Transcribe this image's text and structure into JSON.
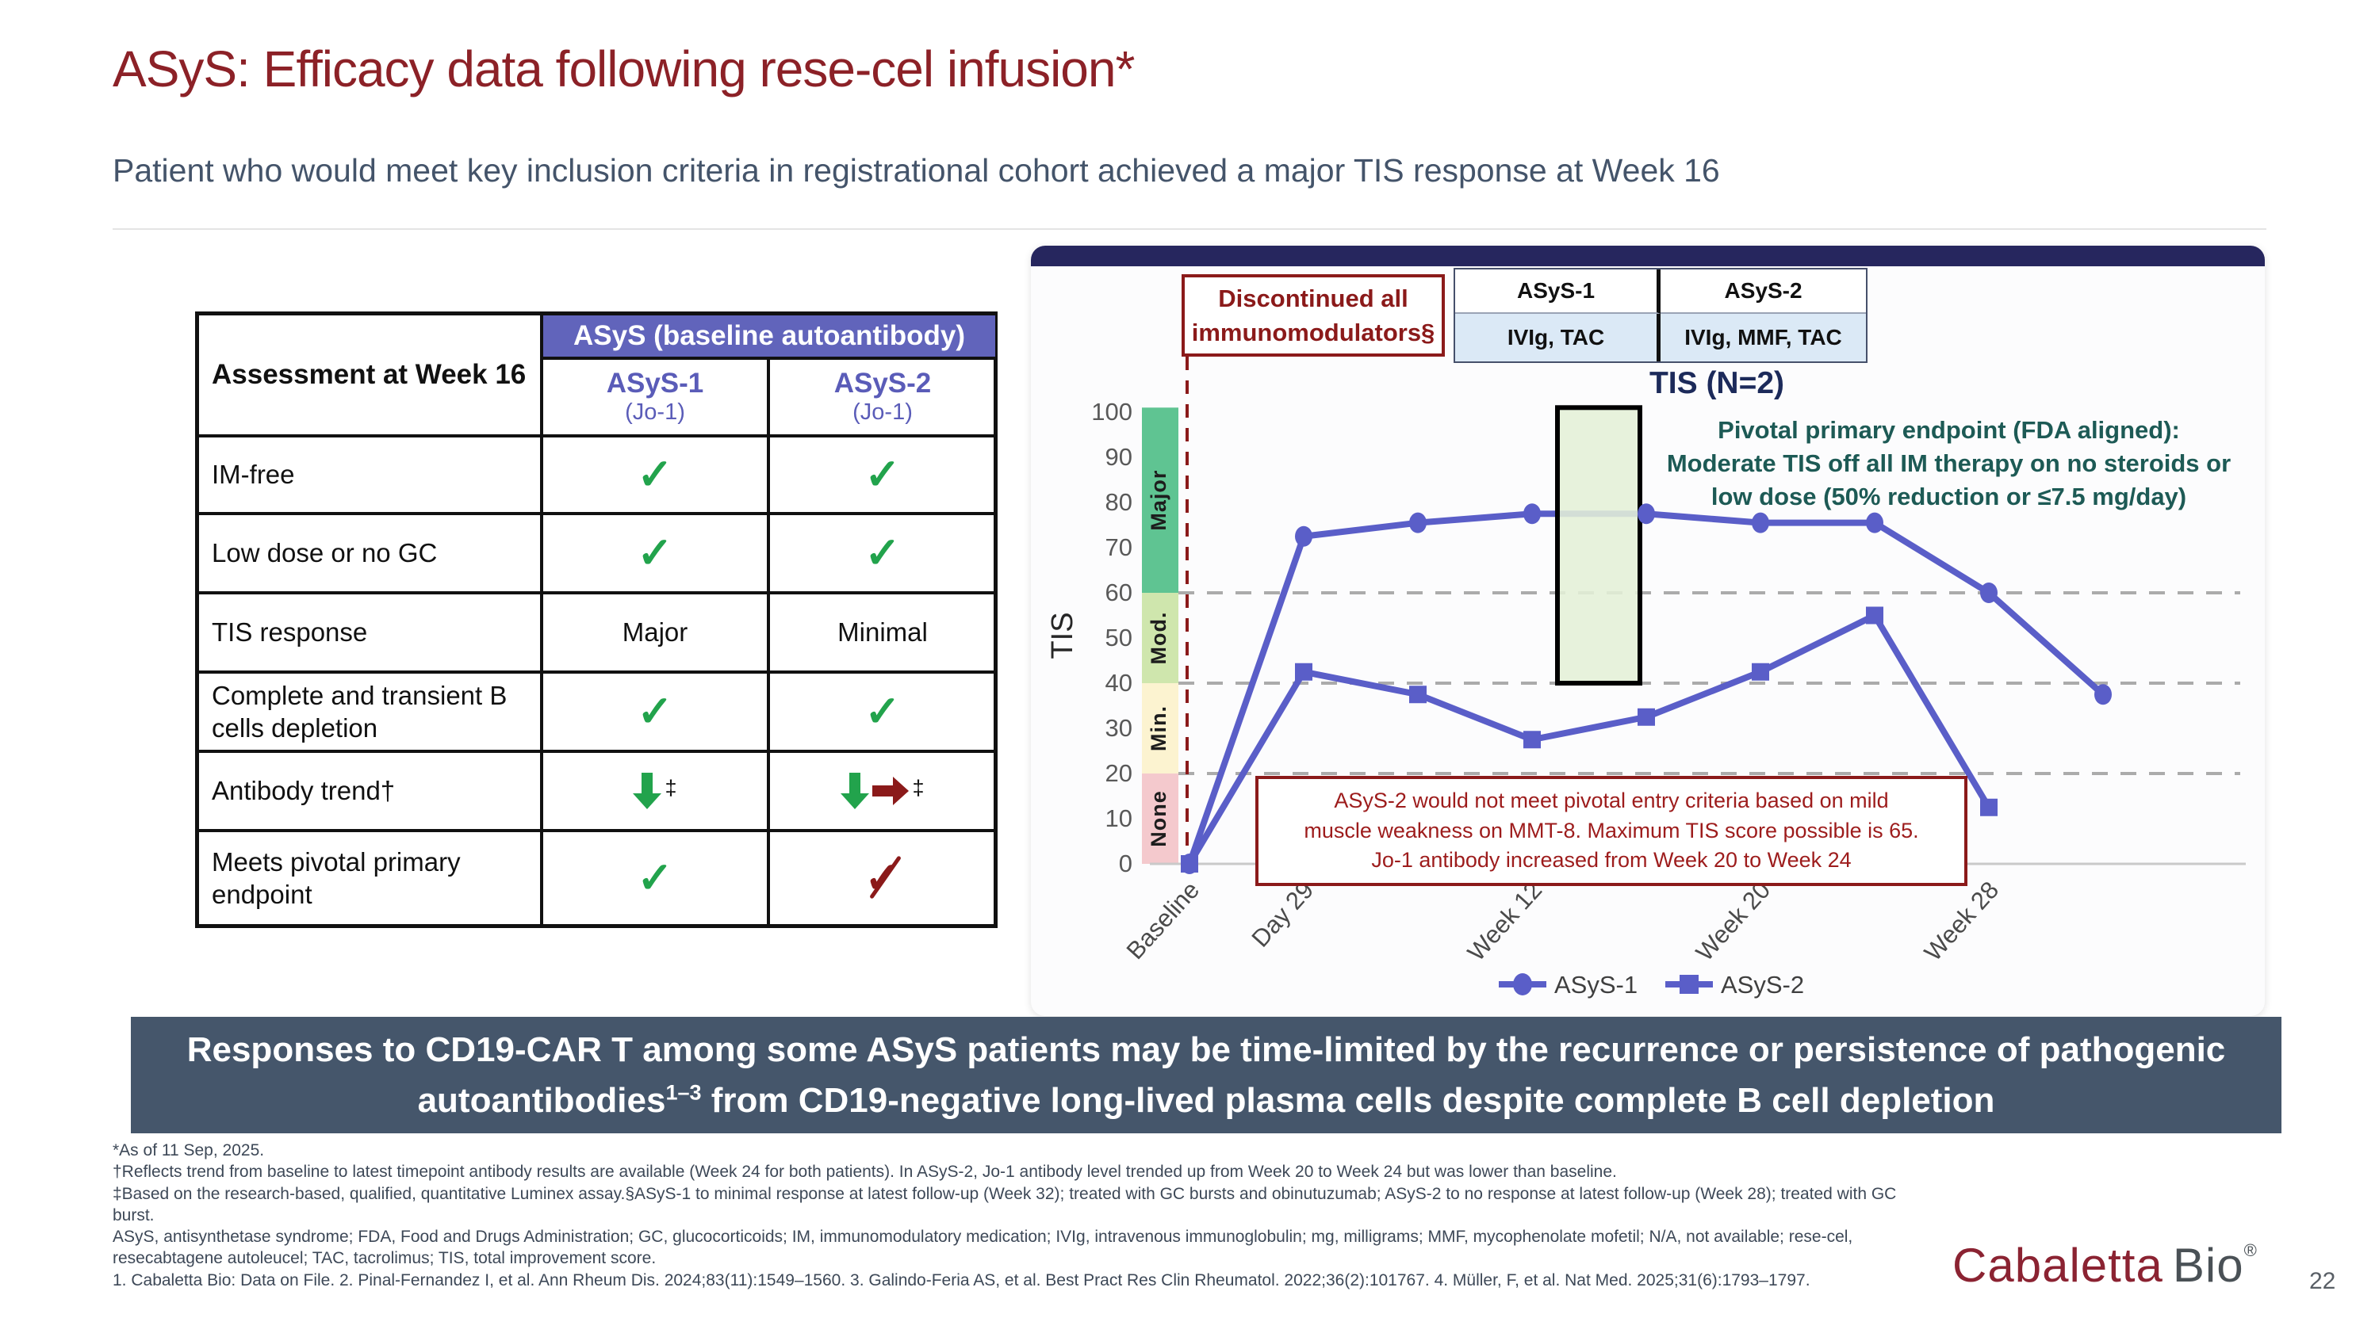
{
  "slide": {
    "title": "ASyS: Efficacy data following rese-cel infusion*",
    "subtitle": "Patient who would meet key inclusion criteria in registrational cohort achieved a major TIS response at Week 16",
    "page_number": "22",
    "logo": {
      "part1": "Cabaletta",
      "part2": "Bio",
      "reg": "®"
    },
    "banner": {
      "text_before_sup": "Responses to CD19-CAR T among some ASyS patients may be time-limited by the recurrence or persistence of pathogenic autoantibodies",
      "sup": "1–3",
      "text_after_sup": " from CD19-negative long-lived plasma cells despite complete B cell depletion"
    },
    "footnotes": [
      "*As of 11 Sep, 2025.",
      "†Reflects trend from baseline to latest timepoint antibody results are available (Week 24 for both patients). In ASyS-2, Jo-1 antibody level trended up from Week 20 to Week 24 but was lower than baseline.",
      "‡Based on the research-based, qualified, quantitative Luminex assay.§ASyS-1 to minimal response at latest follow-up (Week 32); treated with GC bursts and obinutuzumab; ASyS-2 to no response at latest follow-up (Week 28); treated with GC burst.",
      "ASyS, antisynthetase syndrome; FDA, Food and Drugs Administration; GC, glucocorticoids; IM, immunomodulatory medication; IVIg, intravenous immunoglobulin; mg, milligrams; MMF, mycophenolate mofetil; N/A, not available; rese-cel, resecabtagene autoleucel; TAC, tacrolimus; TIS, total improvement score.",
      "1. Cabaletta Bio: Data on File. 2. Pinal-Fernandez I, et al. Ann Rheum Dis. 2024;83(11):1549–1560. 3. Galindo-Feria AS, et al. Best Pract Res Clin Rheumatol. 2022;36(2):101767. 4. Müller, F, et al. Nat Med. 2025;31(6):1793–1797."
    ]
  },
  "assessment_table": {
    "corner_header": "Assessment at Week 16",
    "group_header": "ASyS (baseline autoantibody)",
    "columns": [
      {
        "name": "ASyS-1",
        "sub": "(Jo-1)"
      },
      {
        "name": "ASyS-2",
        "sub": "(Jo-1)"
      }
    ],
    "rows": [
      {
        "label": "IM-free",
        "cells": [
          {
            "kind": "check"
          },
          {
            "kind": "check"
          }
        ]
      },
      {
        "label": "Low dose or no GC",
        "cells": [
          {
            "kind": "check"
          },
          {
            "kind": "check"
          }
        ]
      },
      {
        "label": "TIS response",
        "cells": [
          {
            "kind": "text",
            "text": "Major"
          },
          {
            "kind": "text",
            "text": "Minimal"
          }
        ]
      },
      {
        "label": "Complete and transient B cells depletion",
        "cells": [
          {
            "kind": "check"
          },
          {
            "kind": "check"
          }
        ]
      },
      {
        "label": "Antibody trend†",
        "cells": [
          {
            "kind": "arrow-down",
            "note": "‡"
          },
          {
            "kind": "arrow-down-right",
            "note": "‡"
          }
        ]
      },
      {
        "label": "Meets pivotal primary endpoint",
        "cells": [
          {
            "kind": "check"
          },
          {
            "kind": "check-crossed"
          }
        ]
      }
    ]
  },
  "chart_panel": {
    "discontinued_box": "Discontinued all immunomodulators§",
    "med_table": {
      "headers": [
        "ASyS-1",
        "ASyS-2"
      ],
      "values": [
        "IVIg, TAC",
        "IVIg, MMF, TAC"
      ]
    },
    "endpoint_note_lines": [
      "Pivotal primary endpoint (FDA aligned):",
      "Moderate TIS off all IM therapy on no steroids or",
      "low dose (50% reduction or ≤7.5 mg/day)"
    ],
    "asys2_note_lines": [
      "ASyS-2 would not meet pivotal entry criteria based on mild",
      "muscle weakness on MMT-8. Maximum TIS score possible is 65.",
      "Jo-1 antibody increased from Week 20 to Week 24"
    ]
  },
  "chart_data": {
    "type": "line",
    "title": "TIS (N=2)",
    "ylabel": "TIS",
    "ylim": [
      0,
      100
    ],
    "yticks": [
      0,
      10,
      20,
      30,
      40,
      50,
      60,
      70,
      80,
      90,
      100
    ],
    "gridlines_y": [
      20,
      40,
      60
    ],
    "grid": "dashed horizontal at response thresholds",
    "x": [
      "Baseline",
      "Day 29",
      "Week 8",
      "Week 12",
      "Week 16",
      "Week 20",
      "Week 24",
      "Week 28",
      "Week 32"
    ],
    "labeled_ticks": [
      {
        "index": 0,
        "label": "Baseline"
      },
      {
        "index": 1,
        "label": "Day 29"
      },
      {
        "index": 3,
        "label": "Week 12"
      },
      {
        "index": 5,
        "label": "Week 20"
      },
      {
        "index": 7,
        "label": "Week 28"
      }
    ],
    "series": [
      {
        "name": "ASyS-1",
        "marker": "circle",
        "values": [
          0,
          72.5,
          75.5,
          77.5,
          77.5,
          75.5,
          75.5,
          60,
          37.5
        ]
      },
      {
        "name": "ASyS-2",
        "marker": "square",
        "values": [
          0,
          42.5,
          37.5,
          27.5,
          32.5,
          42.5,
          55,
          12.5,
          null
        ]
      }
    ],
    "line_color": "#5a5ec8",
    "bands": [
      {
        "label": "Major",
        "from": 60,
        "to": 101,
        "color": "#5fc492"
      },
      {
        "label": "Mod.",
        "from": 40,
        "to": 60,
        "color": "#cfe6ad"
      },
      {
        "label": "Min.",
        "from": 20,
        "to": 40,
        "color": "#fcf3d0"
      },
      {
        "label": "None",
        "from": 0,
        "to": 20,
        "color": "#f4c9cd"
      }
    ],
    "highlight_box": {
      "at_x_index": 4,
      "from_tis": 40,
      "to_tis": 101,
      "fill": "#e4f0d7",
      "border": "#000000"
    },
    "baseline_event_line": {
      "x_index": 0,
      "style": "red dashed vertical",
      "color": "#8b1a1a"
    },
    "legend_position": "bottom"
  }
}
